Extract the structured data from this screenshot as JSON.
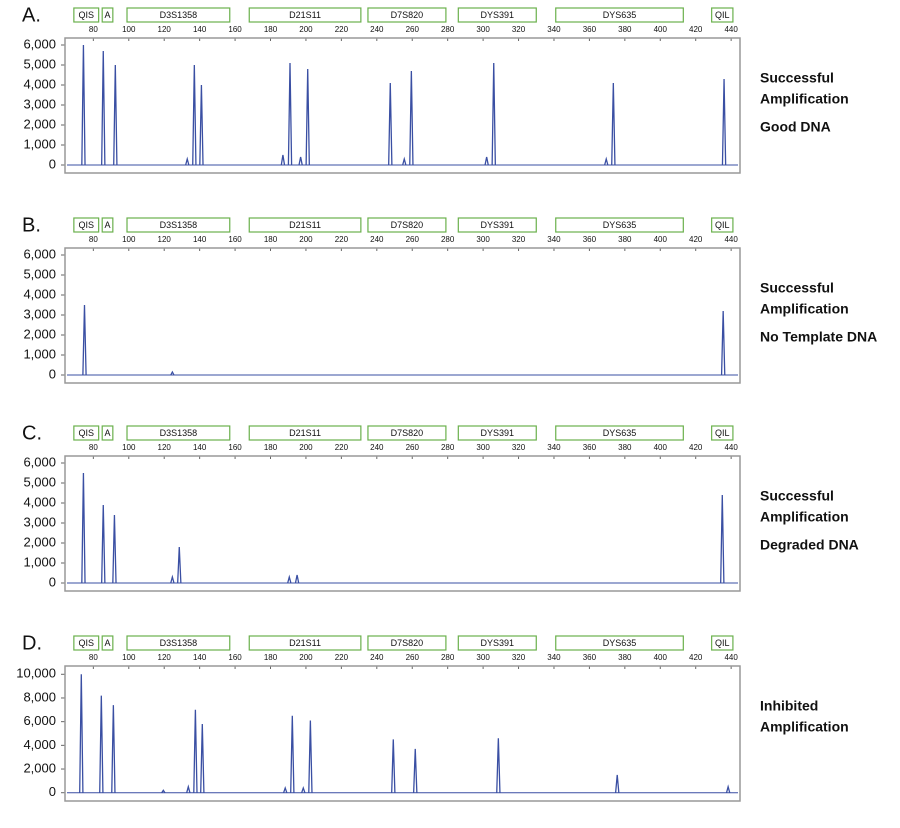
{
  "chart_data": [
    {
      "type": "electropherogram",
      "panel_label": "A.",
      "color": "#3a4fa3",
      "markers": [
        {
          "label": "QIS",
          "range": [
            69,
            83
          ]
        },
        {
          "label": "A",
          "range": [
            85,
            91
          ]
        },
        {
          "label": "D3S1358",
          "range": [
            99,
            157
          ]
        },
        {
          "label": "D21S11",
          "range": [
            168,
            231
          ]
        },
        {
          "label": "D7S820",
          "range": [
            235,
            279
          ]
        },
        {
          "label": "DYS391",
          "range": [
            286,
            330
          ]
        },
        {
          "label": "DYS635",
          "range": [
            341,
            413
          ]
        },
        {
          "label": "QIL",
          "range": [
            429,
            441
          ]
        }
      ],
      "xlim": [
        64,
        445
      ],
      "xticks": [
        80,
        100,
        120,
        140,
        160,
        180,
        200,
        220,
        240,
        260,
        280,
        300,
        320,
        340,
        360,
        380,
        400,
        420,
        440
      ],
      "ylim": [
        -400,
        6350
      ],
      "yticks": [
        0,
        {
          "value": 1000,
          "label": "1,000"
        },
        {
          "value": 2000,
          "label": "2,000"
        },
        {
          "value": 3000,
          "label": "3,000"
        },
        {
          "value": 4000,
          "label": "4,000"
        },
        {
          "value": 5000,
          "label": "5,000"
        },
        {
          "value": 6000,
          "label": "6,000"
        }
      ],
      "x": [
        74.4,
        85.6,
        92.4,
        133,
        137,
        141,
        187,
        191,
        197,
        201,
        247.6,
        255.5,
        259.5,
        302,
        306,
        369.5,
        373.5,
        436
      ],
      "values": [
        6000,
        5700,
        5000,
        300,
        5000,
        4000,
        500,
        5100,
        400,
        4800,
        4100,
        300,
        4700,
        400,
        5100,
        300,
        4100,
        4300
      ],
      "status": [
        "Successful",
        "Amplification"
      ],
      "sample": "Good DNA"
    },
    {
      "type": "electropherogram",
      "panel_label": "B.",
      "color": "#3a4fa3",
      "markers": [
        {
          "label": "QIS",
          "range": [
            69,
            83
          ]
        },
        {
          "label": "A",
          "range": [
            85,
            91
          ]
        },
        {
          "label": "D3S1358",
          "range": [
            99,
            157
          ]
        },
        {
          "label": "D21S11",
          "range": [
            168,
            231
          ]
        },
        {
          "label": "D7S820",
          "range": [
            235,
            279
          ]
        },
        {
          "label": "DYS391",
          "range": [
            286,
            330
          ]
        },
        {
          "label": "DYS635",
          "range": [
            341,
            413
          ]
        },
        {
          "label": "QIL",
          "range": [
            429,
            441
          ]
        }
      ],
      "xlim": [
        64,
        445
      ],
      "xticks": [
        80,
        100,
        120,
        140,
        160,
        180,
        200,
        220,
        240,
        260,
        280,
        300,
        320,
        340,
        360,
        380,
        400,
        420,
        440
      ],
      "ylim": [
        -400,
        6350
      ],
      "yticks": [
        0,
        {
          "value": 1000,
          "label": "1,000"
        },
        {
          "value": 2000,
          "label": "2,000"
        },
        {
          "value": 3000,
          "label": "3,000"
        },
        {
          "value": 4000,
          "label": "4,000"
        },
        {
          "value": 5000,
          "label": "5,000"
        },
        {
          "value": 6000,
          "label": "6,000"
        }
      ],
      "x": [
        75,
        124.6,
        435.5
      ],
      "values": [
        3500,
        150,
        3200
      ],
      "status": [
        "Successful",
        "Amplification"
      ],
      "sample": "No Template DNA"
    },
    {
      "type": "electropherogram",
      "panel_label": "C.",
      "color": "#3a4fa3",
      "markers": [
        {
          "label": "QIS",
          "range": [
            69,
            83
          ]
        },
        {
          "label": "A",
          "range": [
            85,
            91
          ]
        },
        {
          "label": "D3S1358",
          "range": [
            99,
            157
          ]
        },
        {
          "label": "D21S11",
          "range": [
            168,
            231
          ]
        },
        {
          "label": "D7S820",
          "range": [
            235,
            279
          ]
        },
        {
          "label": "DYS391",
          "range": [
            286,
            330
          ]
        },
        {
          "label": "DYS635",
          "range": [
            341,
            413
          ]
        },
        {
          "label": "QIL",
          "range": [
            429,
            441
          ]
        }
      ],
      "xlim": [
        64,
        445
      ],
      "xticks": [
        80,
        100,
        120,
        140,
        160,
        180,
        200,
        220,
        240,
        260,
        280,
        300,
        320,
        340,
        360,
        380,
        400,
        420,
        440
      ],
      "ylim": [
        -400,
        6350
      ],
      "yticks": [
        0,
        {
          "value": 1000,
          "label": "1,000"
        },
        {
          "value": 2000,
          "label": "2,000"
        },
        {
          "value": 3000,
          "label": "3,000"
        },
        {
          "value": 4000,
          "label": "4,000"
        },
        {
          "value": 5000,
          "label": "5,000"
        },
        {
          "value": 6000,
          "label": "6,000"
        }
      ],
      "x": [
        74.4,
        85.6,
        91.9,
        124.6,
        128.5,
        190.6,
        195,
        435
      ],
      "values": [
        5500,
        3900,
        3400,
        300,
        1800,
        300,
        400,
        4400
      ],
      "status": [
        "Successful",
        "Amplification"
      ],
      "sample": "Degraded DNA"
    },
    {
      "type": "electropherogram",
      "panel_label": "D.",
      "color": "#3a4fa3",
      "markers": [
        {
          "label": "QIS",
          "range": [
            69,
            83
          ]
        },
        {
          "label": "A",
          "range": [
            85,
            91
          ]
        },
        {
          "label": "D3S1358",
          "range": [
            99,
            157
          ]
        },
        {
          "label": "D21S11",
          "range": [
            168,
            231
          ]
        },
        {
          "label": "D7S820",
          "range": [
            235,
            279
          ]
        },
        {
          "label": "DYS391",
          "range": [
            286,
            330
          ]
        },
        {
          "label": "DYS635",
          "range": [
            341,
            413
          ]
        },
        {
          "label": "QIL",
          "range": [
            429,
            441
          ]
        }
      ],
      "xlim": [
        64,
        445
      ],
      "xticks": [
        80,
        100,
        120,
        140,
        160,
        180,
        200,
        220,
        240,
        260,
        280,
        300,
        320,
        340,
        360,
        380,
        400,
        420,
        440
      ],
      "ylim": [
        -700,
        10700
      ],
      "yticks": [
        0,
        {
          "value": 2000,
          "label": "2,000"
        },
        {
          "value": 4000,
          "label": "4,000"
        },
        {
          "value": 6000,
          "label": "6,000"
        },
        {
          "value": 8000,
          "label": "8,000"
        },
        {
          "value": 10000,
          "label": "10,000"
        }
      ],
      "x": [
        73.2,
        84.5,
        91.3,
        119.5,
        133.6,
        137.6,
        141.5,
        188.3,
        192.3,
        198.5,
        202.5,
        249.3,
        261.7,
        308.6,
        375.7,
        438.3
      ],
      "values": [
        10000,
        8200,
        7400,
        200,
        500,
        7000,
        5800,
        400,
        6500,
        400,
        6100,
        4500,
        3700,
        4600,
        1500,
        500
      ],
      "status": [
        "Inhibited",
        "Amplification"
      ]
    }
  ]
}
